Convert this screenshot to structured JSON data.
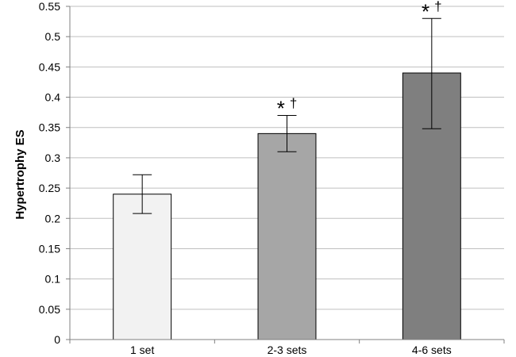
{
  "chart_data": {
    "type": "bar",
    "title": "",
    "xlabel": "",
    "ylabel": "Hypertrophy ES",
    "ylim": [
      0,
      0.55
    ],
    "y_ticks": [
      "0",
      "0.05",
      "0.1",
      "0.15",
      "0.2",
      "0.25",
      "0.3",
      "0.35",
      "0.4",
      "0.45",
      "0.5",
      "0.55"
    ],
    "grid": true,
    "categories": [
      "1 set",
      "2-3 sets",
      "4-6 sets"
    ],
    "values": [
      0.24,
      0.34,
      0.44
    ],
    "error_low": [
      0.208,
      0.31,
      0.348
    ],
    "error_high": [
      0.272,
      0.37,
      0.53
    ],
    "bar_colors": [
      "#f2f2f2",
      "#a6a6a6",
      "#7f7f7f"
    ],
    "annotations": [
      "",
      "* †",
      "* †"
    ]
  }
}
